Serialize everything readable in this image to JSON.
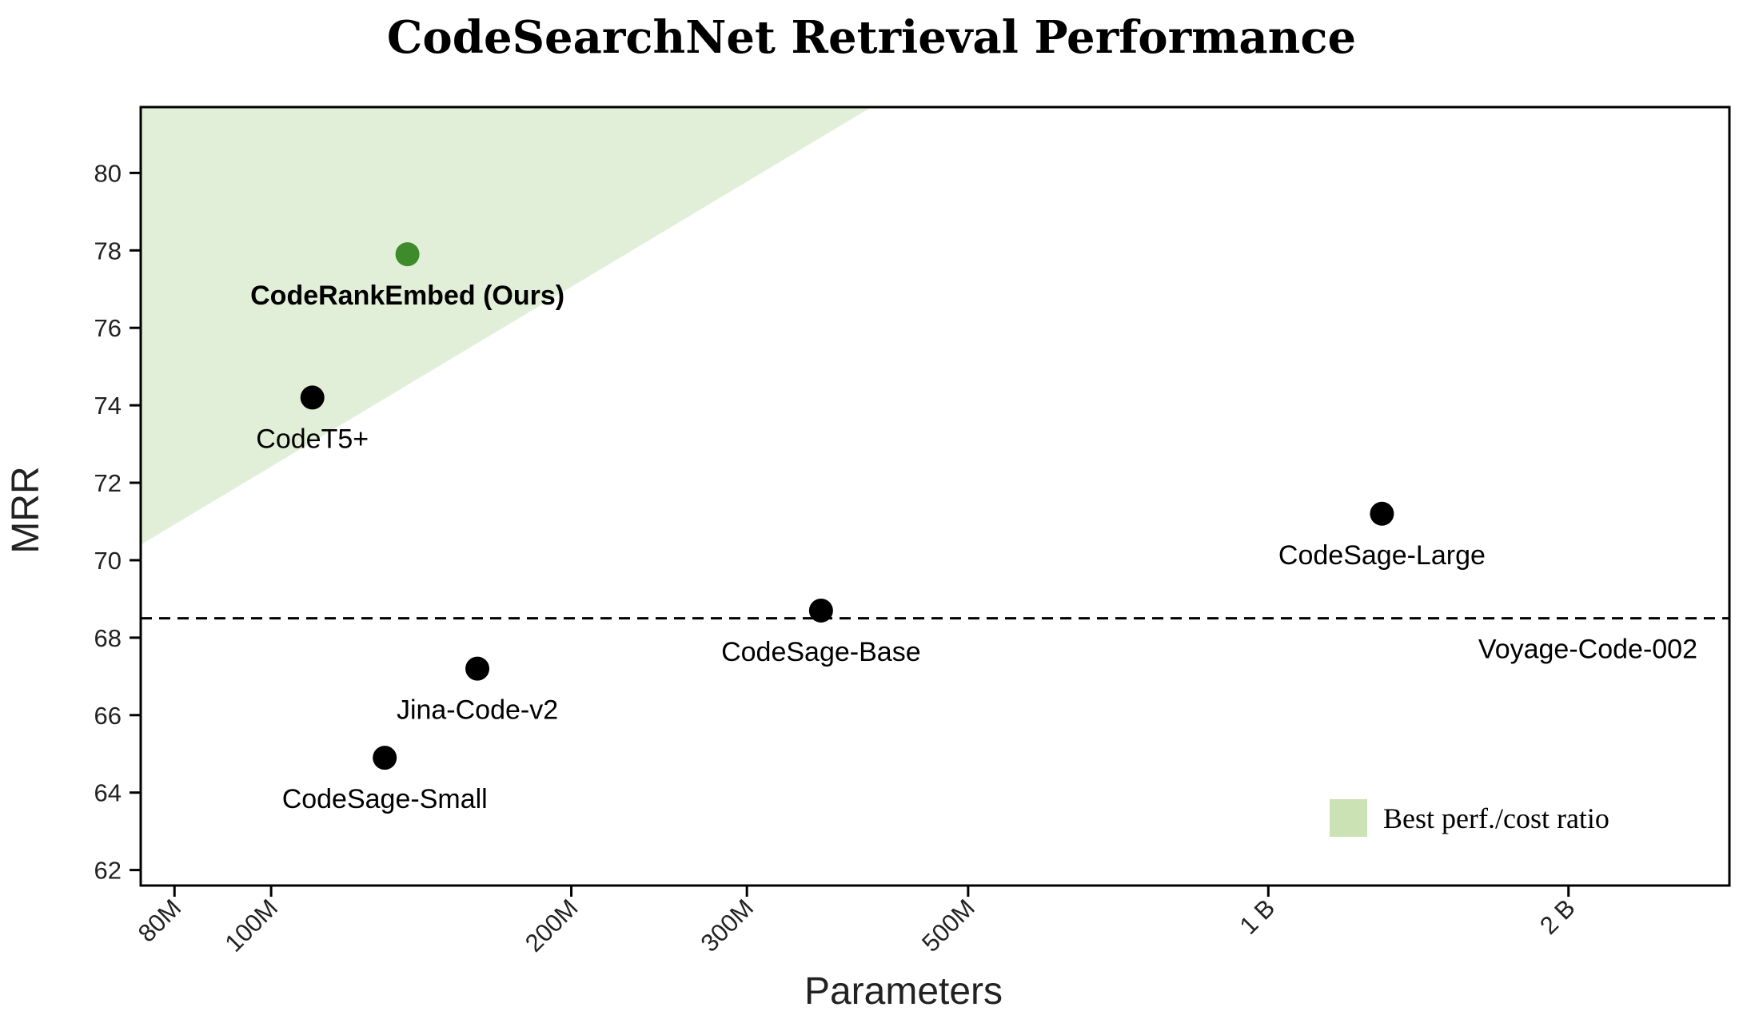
{
  "chart_data": {
    "type": "scatter",
    "title": "CodeSearchNet Retrieval Performance",
    "xlabel": "Parameters",
    "ylabel": "MRR",
    "xscale": "log",
    "xlim": [
      74000000,
      2900000000
    ],
    "ylim": [
      61.6,
      81.7
    ],
    "x_ticks": [
      {
        "value": 80000000,
        "label": "80M"
      },
      {
        "value": 100000000,
        "label": "100M"
      },
      {
        "value": 200000000,
        "label": "200M"
      },
      {
        "value": 300000000,
        "label": "300M"
      },
      {
        "value": 500000000,
        "label": "500M"
      },
      {
        "value": 1000000000,
        "label": "1 B"
      },
      {
        "value": 2000000000,
        "label": "2 B"
      }
    ],
    "y_ticks": [
      62,
      64,
      66,
      68,
      70,
      72,
      74,
      76,
      78,
      80
    ],
    "points": [
      {
        "label": "CodeRankEmbed (Ours)",
        "x": 137000000,
        "y": 77.9,
        "color": "#3d8b2a",
        "bold": true
      },
      {
        "label": "CodeT5+",
        "x": 110000000,
        "y": 74.2,
        "color": "#000000",
        "bold": false
      },
      {
        "label": "CodeSage-Large",
        "x": 1300000000,
        "y": 71.2,
        "color": "#000000",
        "bold": false
      },
      {
        "label": "CodeSage-Base",
        "x": 356000000,
        "y": 68.7,
        "color": "#000000",
        "bold": false
      },
      {
        "label": "Jina-Code-v2",
        "x": 161000000,
        "y": 67.2,
        "color": "#000000",
        "bold": false
      },
      {
        "label": "CodeSage-Small",
        "x": 130000000,
        "y": 64.9,
        "color": "#000000",
        "bold": false
      }
    ],
    "reference_line": {
      "label": "Voyage-Code-002",
      "y": 68.5,
      "style": "dashed",
      "color": "#000000"
    },
    "region": {
      "label": "Best perf./cost ratio",
      "color": "#e2efd8",
      "legend_color": "#cbe2b5",
      "edge": [
        {
          "x": 74000000,
          "y": 70.4
        },
        {
          "x": 400000000,
          "y": 81.7
        }
      ]
    },
    "legend": {
      "placement": "bottom-right"
    },
    "grid": false
  }
}
